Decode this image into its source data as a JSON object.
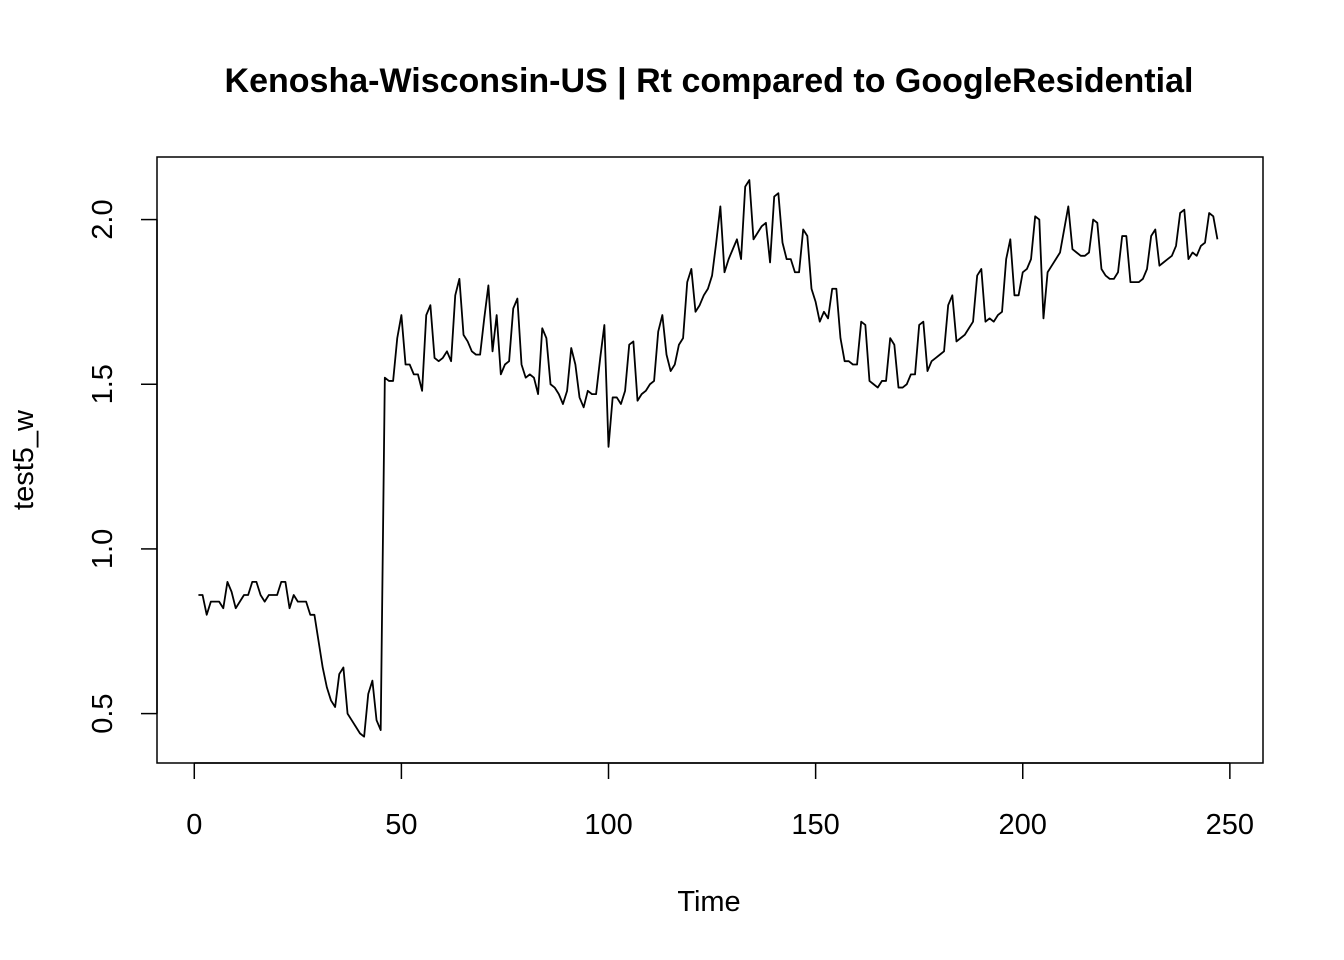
{
  "chart_data": {
    "type": "line",
    "title": "Kenosha-Wisconsin-US | Rt compared to GoogleResidential",
    "xlabel": "Time",
    "ylabel": "test5_w",
    "xlim": [
      -9,
      258
    ],
    "ylim": [
      0.35,
      2.19
    ],
    "x_ticks": [
      0,
      50,
      100,
      150,
      200,
      250
    ],
    "y_ticks": [
      0.5,
      1.0,
      1.5,
      2.0
    ],
    "x_tick_labels": [
      "0",
      "50",
      "100",
      "150",
      "200",
      "250"
    ],
    "y_tick_labels": [
      "0.5",
      "1.0",
      "1.5",
      "2.0"
    ],
    "grid": false,
    "legend": "none",
    "line_color": "#000000",
    "series": [
      {
        "values": [
          [
            1,
            0.86
          ],
          [
            2,
            0.86
          ],
          [
            3,
            0.8
          ],
          [
            4,
            0.84
          ],
          [
            5,
            0.84
          ],
          [
            6,
            0.84
          ],
          [
            7,
            0.82
          ],
          [
            8,
            0.9
          ],
          [
            9,
            0.87
          ],
          [
            10,
            0.82
          ],
          [
            11,
            0.84
          ],
          [
            12,
            0.86
          ],
          [
            13,
            0.86
          ],
          [
            14,
            0.9
          ],
          [
            15,
            0.9
          ],
          [
            16,
            0.86
          ],
          [
            17,
            0.84
          ],
          [
            18,
            0.86
          ],
          [
            19,
            0.86
          ],
          [
            20,
            0.86
          ],
          [
            21,
            0.9
          ],
          [
            22,
            0.9
          ],
          [
            23,
            0.82
          ],
          [
            24,
            0.86
          ],
          [
            25,
            0.84
          ],
          [
            26,
            0.84
          ],
          [
            27,
            0.84
          ],
          [
            28,
            0.8
          ],
          [
            29,
            0.8
          ],
          [
            30,
            0.72
          ],
          [
            31,
            0.64
          ],
          [
            32,
            0.58
          ],
          [
            33,
            0.54
          ],
          [
            34,
            0.52
          ],
          [
            35,
            0.62
          ],
          [
            36,
            0.64
          ],
          [
            37,
            0.5
          ],
          [
            38,
            0.48
          ],
          [
            39,
            0.46
          ],
          [
            40,
            0.44
          ],
          [
            41,
            0.43
          ],
          [
            42,
            0.56
          ],
          [
            43,
            0.6
          ],
          [
            44,
            0.48
          ],
          [
            45,
            0.45
          ],
          [
            46,
            1.52
          ],
          [
            47,
            1.51
          ],
          [
            48,
            1.51
          ],
          [
            49,
            1.64
          ],
          [
            50,
            1.71
          ],
          [
            51,
            1.56
          ],
          [
            52,
            1.56
          ],
          [
            53,
            1.53
          ],
          [
            54,
            1.53
          ],
          [
            55,
            1.48
          ],
          [
            56,
            1.71
          ],
          [
            57,
            1.74
          ],
          [
            58,
            1.58
          ],
          [
            59,
            1.57
          ],
          [
            60,
            1.58
          ],
          [
            61,
            1.6
          ],
          [
            62,
            1.57
          ],
          [
            63,
            1.77
          ],
          [
            64,
            1.82
          ],
          [
            65,
            1.65
          ],
          [
            66,
            1.63
          ],
          [
            67,
            1.6
          ],
          [
            68,
            1.59
          ],
          [
            69,
            1.59
          ],
          [
            70,
            1.7
          ],
          [
            71,
            1.8
          ],
          [
            72,
            1.6
          ],
          [
            73,
            1.71
          ],
          [
            74,
            1.53
          ],
          [
            75,
            1.56
          ],
          [
            76,
            1.57
          ],
          [
            77,
            1.73
          ],
          [
            78,
            1.76
          ],
          [
            79,
            1.56
          ],
          [
            80,
            1.52
          ],
          [
            81,
            1.53
          ],
          [
            82,
            1.52
          ],
          [
            83,
            1.47
          ],
          [
            84,
            1.67
          ],
          [
            85,
            1.64
          ],
          [
            86,
            1.5
          ],
          [
            87,
            1.49
          ],
          [
            88,
            1.47
          ],
          [
            89,
            1.44
          ],
          [
            90,
            1.48
          ],
          [
            91,
            1.61
          ],
          [
            92,
            1.56
          ],
          [
            93,
            1.46
          ],
          [
            94,
            1.43
          ],
          [
            95,
            1.48
          ],
          [
            96,
            1.47
          ],
          [
            97,
            1.47
          ],
          [
            98,
            1.58
          ],
          [
            99,
            1.68
          ],
          [
            100,
            1.31
          ],
          [
            101,
            1.46
          ],
          [
            102,
            1.46
          ],
          [
            103,
            1.44
          ],
          [
            104,
            1.48
          ],
          [
            105,
            1.62
          ],
          [
            106,
            1.63
          ],
          [
            107,
            1.45
          ],
          [
            108,
            1.47
          ],
          [
            109,
            1.48
          ],
          [
            110,
            1.5
          ],
          [
            111,
            1.51
          ],
          [
            112,
            1.66
          ],
          [
            113,
            1.71
          ],
          [
            114,
            1.59
          ],
          [
            115,
            1.54
          ],
          [
            116,
            1.56
          ],
          [
            117,
            1.62
          ],
          [
            118,
            1.64
          ],
          [
            119,
            1.81
          ],
          [
            120,
            1.85
          ],
          [
            121,
            1.72
          ],
          [
            122,
            1.74
          ],
          [
            123,
            1.77
          ],
          [
            124,
            1.79
          ],
          [
            125,
            1.83
          ],
          [
            126,
            1.93
          ],
          [
            127,
            2.04
          ],
          [
            128,
            1.84
          ],
          [
            129,
            1.88
          ],
          [
            130,
            1.91
          ],
          [
            131,
            1.94
          ],
          [
            132,
            1.88
          ],
          [
            133,
            2.1
          ],
          [
            134,
            2.12
          ],
          [
            135,
            1.94
          ],
          [
            136,
            1.96
          ],
          [
            137,
            1.98
          ],
          [
            138,
            1.99
          ],
          [
            139,
            1.87
          ],
          [
            140,
            2.07
          ],
          [
            141,
            2.08
          ],
          [
            142,
            1.93
          ],
          [
            143,
            1.88
          ],
          [
            144,
            1.88
          ],
          [
            145,
            1.84
          ],
          [
            146,
            1.84
          ],
          [
            147,
            1.97
          ],
          [
            148,
            1.95
          ],
          [
            149,
            1.79
          ],
          [
            150,
            1.75
          ],
          [
            151,
            1.69
          ],
          [
            152,
            1.72
          ],
          [
            153,
            1.7
          ],
          [
            154,
            1.79
          ],
          [
            155,
            1.79
          ],
          [
            156,
            1.64
          ],
          [
            157,
            1.57
          ],
          [
            158,
            1.57
          ],
          [
            159,
            1.56
          ],
          [
            160,
            1.56
          ],
          [
            161,
            1.69
          ],
          [
            162,
            1.68
          ],
          [
            163,
            1.51
          ],
          [
            164,
            1.5
          ],
          [
            165,
            1.49
          ],
          [
            166,
            1.51
          ],
          [
            167,
            1.51
          ],
          [
            168,
            1.64
          ],
          [
            169,
            1.62
          ],
          [
            170,
            1.49
          ],
          [
            171,
            1.49
          ],
          [
            172,
            1.5
          ],
          [
            173,
            1.53
          ],
          [
            174,
            1.53
          ],
          [
            175,
            1.68
          ],
          [
            176,
            1.69
          ],
          [
            177,
            1.54
          ],
          [
            178,
            1.57
          ],
          [
            179,
            1.58
          ],
          [
            180,
            1.59
          ],
          [
            181,
            1.6
          ],
          [
            182,
            1.74
          ],
          [
            183,
            1.77
          ],
          [
            184,
            1.63
          ],
          [
            185,
            1.64
          ],
          [
            186,
            1.65
          ],
          [
            187,
            1.67
          ],
          [
            188,
            1.69
          ],
          [
            189,
            1.83
          ],
          [
            190,
            1.85
          ],
          [
            191,
            1.69
          ],
          [
            192,
            1.7
          ],
          [
            193,
            1.69
          ],
          [
            194,
            1.71
          ],
          [
            195,
            1.72
          ],
          [
            196,
            1.88
          ],
          [
            197,
            1.94
          ],
          [
            198,
            1.77
          ],
          [
            199,
            1.77
          ],
          [
            200,
            1.84
          ],
          [
            201,
            1.85
          ],
          [
            202,
            1.88
          ],
          [
            203,
            2.01
          ],
          [
            204,
            2.0
          ],
          [
            205,
            1.7
          ],
          [
            206,
            1.84
          ],
          [
            207,
            1.86
          ],
          [
            208,
            1.88
          ],
          [
            209,
            1.9
          ],
          [
            210,
            1.97
          ],
          [
            211,
            2.04
          ],
          [
            212,
            1.91
          ],
          [
            213,
            1.9
          ],
          [
            214,
            1.89
          ],
          [
            215,
            1.89
          ],
          [
            216,
            1.9
          ],
          [
            217,
            2.0
          ],
          [
            218,
            1.99
          ],
          [
            219,
            1.85
          ],
          [
            220,
            1.83
          ],
          [
            221,
            1.82
          ],
          [
            222,
            1.82
          ],
          [
            223,
            1.84
          ],
          [
            224,
            1.95
          ],
          [
            225,
            1.95
          ],
          [
            226,
            1.81
          ],
          [
            227,
            1.81
          ],
          [
            228,
            1.81
          ],
          [
            229,
            1.82
          ],
          [
            230,
            1.85
          ],
          [
            231,
            1.95
          ],
          [
            232,
            1.97
          ],
          [
            233,
            1.86
          ],
          [
            234,
            1.87
          ],
          [
            235,
            1.88
          ],
          [
            236,
            1.89
          ],
          [
            237,
            1.92
          ],
          [
            238,
            2.02
          ],
          [
            239,
            2.03
          ],
          [
            240,
            1.88
          ],
          [
            241,
            1.9
          ],
          [
            242,
            1.89
          ],
          [
            243,
            1.92
          ],
          [
            244,
            1.93
          ],
          [
            245,
            2.02
          ],
          [
            246,
            2.01
          ],
          [
            247,
            1.94
          ]
        ]
      }
    ]
  }
}
